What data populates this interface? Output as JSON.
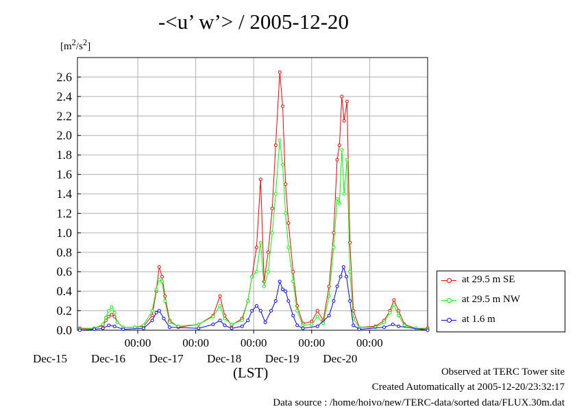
{
  "chart_data": {
    "type": "line",
    "title": "-<u’ w’> / 2005-12-20",
    "ylabel_unit_html": "[m<sup>2</sup>/s<sup>2</sup>]",
    "xlabel": "(LST)",
    "ylim": [
      0,
      2.8
    ],
    "yticks": [
      "0.0",
      "0.2",
      "0.4",
      "0.6",
      "0.8",
      "1.0",
      "1.2",
      "1.4",
      "1.6",
      "1.8",
      "2.0",
      "2.2",
      "2.4",
      "2.6"
    ],
    "x_range_days": [
      -0.04,
      6.0
    ],
    "x_ticks": [
      {
        "day": 1,
        "time": "00:00",
        "date": "Dec-16"
      },
      {
        "day": 2,
        "time": "00:00",
        "date": "Dec-17"
      },
      {
        "day": 3,
        "time": "00:00",
        "date": "Dec-18"
      },
      {
        "day": 4,
        "time": "00:00",
        "date": "Dec-19"
      },
      {
        "day": 5,
        "time": "00:00",
        "date": "Dec-20"
      }
    ],
    "first_date_label": "Dec-15",
    "grid": true,
    "legend_position": "right",
    "series": [
      {
        "name": "at 29.5 m SE",
        "color": "#ff0000",
        "points": [
          [
            0.0,
            0.02
          ],
          [
            0.25,
            0.02
          ],
          [
            0.4,
            0.05
          ],
          [
            0.45,
            0.1
          ],
          [
            0.5,
            0.14
          ],
          [
            0.55,
            0.16
          ],
          [
            0.6,
            0.14
          ],
          [
            0.65,
            0.08
          ],
          [
            0.75,
            0.03
          ],
          [
            0.95,
            0.03
          ],
          [
            1.1,
            0.04
          ],
          [
            1.25,
            0.15
          ],
          [
            1.32,
            0.4
          ],
          [
            1.37,
            0.65
          ],
          [
            1.42,
            0.55
          ],
          [
            1.47,
            0.35
          ],
          [
            1.55,
            0.1
          ],
          [
            1.7,
            0.03
          ],
          [
            2.05,
            0.06
          ],
          [
            2.3,
            0.15
          ],
          [
            2.42,
            0.35
          ],
          [
            2.5,
            0.15
          ],
          [
            2.62,
            0.05
          ],
          [
            2.8,
            0.12
          ],
          [
            2.9,
            0.3
          ],
          [
            2.97,
            0.55
          ],
          [
            3.05,
            0.85
          ],
          [
            3.12,
            1.55
          ],
          [
            3.18,
            0.5
          ],
          [
            3.25,
            0.8
          ],
          [
            3.32,
            1.25
          ],
          [
            3.38,
            1.9
          ],
          [
            3.45,
            2.65
          ],
          [
            3.5,
            2.3
          ],
          [
            3.55,
            1.5
          ],
          [
            3.6,
            1.1
          ],
          [
            3.68,
            0.6
          ],
          [
            3.75,
            0.25
          ],
          [
            3.85,
            0.07
          ],
          [
            4.0,
            0.09
          ],
          [
            4.1,
            0.2
          ],
          [
            4.2,
            0.1
          ],
          [
            4.3,
            0.45
          ],
          [
            4.38,
            1.0
          ],
          [
            4.44,
            1.75
          ],
          [
            4.48,
            1.9
          ],
          [
            4.52,
            2.4
          ],
          [
            4.56,
            2.15
          ],
          [
            4.61,
            2.35
          ],
          [
            4.66,
            0.9
          ],
          [
            4.72,
            0.2
          ],
          [
            4.82,
            0.03
          ],
          [
            5.1,
            0.04
          ],
          [
            5.25,
            0.1
          ],
          [
            5.35,
            0.2
          ],
          [
            5.42,
            0.31
          ],
          [
            5.5,
            0.2
          ],
          [
            5.6,
            0.06
          ],
          [
            5.8,
            0.02
          ],
          [
            6.0,
            0.02
          ]
        ]
      },
      {
        "name": "at 29.5 m NW",
        "color": "#00ff00",
        "points": [
          [
            0.0,
            0.01
          ],
          [
            0.25,
            0.02
          ],
          [
            0.4,
            0.06
          ],
          [
            0.45,
            0.13
          ],
          [
            0.5,
            0.2
          ],
          [
            0.55,
            0.24
          ],
          [
            0.6,
            0.18
          ],
          [
            0.65,
            0.08
          ],
          [
            0.75,
            0.03
          ],
          [
            0.95,
            0.03
          ],
          [
            1.1,
            0.05
          ],
          [
            1.25,
            0.2
          ],
          [
            1.32,
            0.42
          ],
          [
            1.37,
            0.52
          ],
          [
            1.42,
            0.5
          ],
          [
            1.47,
            0.3
          ],
          [
            1.55,
            0.08
          ],
          [
            1.7,
            0.04
          ],
          [
            2.05,
            0.06
          ],
          [
            2.3,
            0.14
          ],
          [
            2.42,
            0.25
          ],
          [
            2.5,
            0.12
          ],
          [
            2.62,
            0.06
          ],
          [
            2.8,
            0.1
          ],
          [
            2.9,
            0.3
          ],
          [
            2.97,
            0.55
          ],
          [
            3.05,
            0.6
          ],
          [
            3.12,
            0.9
          ],
          [
            3.18,
            0.45
          ],
          [
            3.25,
            0.6
          ],
          [
            3.32,
            1.0
          ],
          [
            3.38,
            1.4
          ],
          [
            3.45,
            1.95
          ],
          [
            3.5,
            1.7
          ],
          [
            3.55,
            1.2
          ],
          [
            3.6,
            0.85
          ],
          [
            3.68,
            0.5
          ],
          [
            3.75,
            0.2
          ],
          [
            3.85,
            0.05
          ],
          [
            4.0,
            0.06
          ],
          [
            4.1,
            0.14
          ],
          [
            4.2,
            0.07
          ],
          [
            4.3,
            0.35
          ],
          [
            4.38,
            0.85
          ],
          [
            4.44,
            1.35
          ],
          [
            4.48,
            1.3
          ],
          [
            4.52,
            1.85
          ],
          [
            4.56,
            1.4
          ],
          [
            4.61,
            1.75
          ],
          [
            4.66,
            0.6
          ],
          [
            4.72,
            0.12
          ],
          [
            4.82,
            0.03
          ],
          [
            5.1,
            0.03
          ],
          [
            5.25,
            0.08
          ],
          [
            5.35,
            0.18
          ],
          [
            5.42,
            0.26
          ],
          [
            5.5,
            0.15
          ],
          [
            5.6,
            0.05
          ],
          [
            5.8,
            0.02
          ],
          [
            6.0,
            0.01
          ]
        ]
      },
      {
        "name": "at 1.6 m",
        "color": "#0000ff",
        "points": [
          [
            0.0,
            0.0
          ],
          [
            0.25,
            0.01
          ],
          [
            0.4,
            0.02
          ],
          [
            0.5,
            0.05
          ],
          [
            0.6,
            0.04
          ],
          [
            0.75,
            0.01
          ],
          [
            1.1,
            0.02
          ],
          [
            1.25,
            0.1
          ],
          [
            1.32,
            0.18
          ],
          [
            1.37,
            0.2
          ],
          [
            1.45,
            0.12
          ],
          [
            1.55,
            0.03
          ],
          [
            2.05,
            0.02
          ],
          [
            2.3,
            0.06
          ],
          [
            2.42,
            0.1
          ],
          [
            2.5,
            0.05
          ],
          [
            2.62,
            0.02
          ],
          [
            2.8,
            0.04
          ],
          [
            2.9,
            0.1
          ],
          [
            2.97,
            0.2
          ],
          [
            3.05,
            0.25
          ],
          [
            3.12,
            0.2
          ],
          [
            3.2,
            0.08
          ],
          [
            3.3,
            0.2
          ],
          [
            3.38,
            0.3
          ],
          [
            3.45,
            0.5
          ],
          [
            3.5,
            0.42
          ],
          [
            3.55,
            0.4
          ],
          [
            3.6,
            0.3
          ],
          [
            3.68,
            0.15
          ],
          [
            3.75,
            0.05
          ],
          [
            3.85,
            0.02
          ],
          [
            4.1,
            0.04
          ],
          [
            4.3,
            0.15
          ],
          [
            4.38,
            0.3
          ],
          [
            4.44,
            0.45
          ],
          [
            4.5,
            0.55
          ],
          [
            4.55,
            0.65
          ],
          [
            4.6,
            0.55
          ],
          [
            4.66,
            0.3
          ],
          [
            4.72,
            0.05
          ],
          [
            4.82,
            0.01
          ],
          [
            5.25,
            0.03
          ],
          [
            5.4,
            0.06
          ],
          [
            5.5,
            0.04
          ],
          [
            6.0,
            0.0
          ]
        ]
      }
    ]
  },
  "footer": {
    "line1": "Observed at TERC Tower site",
    "line2": "Created Automatically at 2005-12-20/23:32:17",
    "line3": "Data source : /home/hoivo/new/TERC-data/sorted  data/FLUX.30m.dat"
  }
}
